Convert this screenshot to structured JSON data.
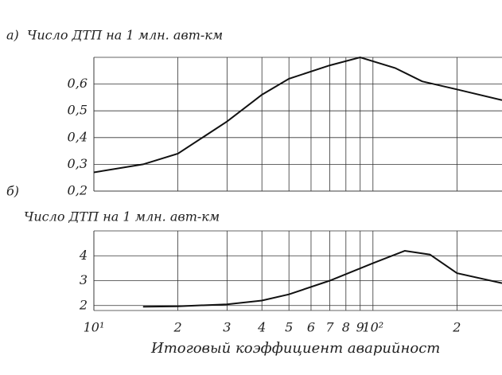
{
  "chart_data": [
    {
      "type": "line",
      "panel_label": "а)",
      "title": "Число ДТП на 1 млн. авт-км",
      "x": [
        10,
        15,
        20,
        30,
        40,
        50,
        70,
        90,
        120,
        150,
        200,
        290
      ],
      "values": [
        0.27,
        0.3,
        0.34,
        0.46,
        0.56,
        0.62,
        0.67,
        0.7,
        0.66,
        0.61,
        0.58,
        0.54
      ],
      "color": "#111",
      "log_x": true,
      "xlim": [
        10,
        290
      ],
      "ylim": [
        0.2,
        0.7
      ],
      "yticks": [
        {
          "value": 0.2,
          "label": "0,2"
        },
        {
          "value": 0.3,
          "label": "0,3"
        },
        {
          "value": 0.4,
          "label": "0,4"
        },
        {
          "value": 0.5,
          "label": "0,5"
        },
        {
          "value": 0.6,
          "label": "0,6"
        }
      ],
      "grid": true
    },
    {
      "type": "line",
      "panel_label": "б)",
      "title": "Число ДТП на 1 млн. авт-км",
      "x": [
        15,
        20,
        30,
        40,
        50,
        70,
        100,
        130,
        160,
        200,
        290
      ],
      "values": [
        1.95,
        1.97,
        2.05,
        2.2,
        2.45,
        3.0,
        3.7,
        4.2,
        4.05,
        3.3,
        2.9
      ],
      "color": "#111",
      "log_x": true,
      "xlim": [
        10,
        290
      ],
      "ylim": [
        1.8,
        5
      ],
      "yticks": [
        2,
        3,
        4
      ],
      "xticks": [
        {
          "value": 10,
          "label": "10¹"
        },
        {
          "value": 20,
          "label": "2"
        },
        {
          "value": 30,
          "label": "3"
        },
        {
          "value": 40,
          "label": "4"
        },
        {
          "value": 50,
          "label": "5"
        },
        {
          "value": 60,
          "label": "6"
        },
        {
          "value": 70,
          "label": "7"
        },
        {
          "value": 80,
          "label": "8"
        },
        {
          "value": 90,
          "label": "9"
        },
        {
          "value": 100,
          "label": "10²"
        },
        {
          "value": 200,
          "label": "2"
        }
      ],
      "x_label": "Итоговый коэффициент аварийност",
      "grid": true
    }
  ]
}
